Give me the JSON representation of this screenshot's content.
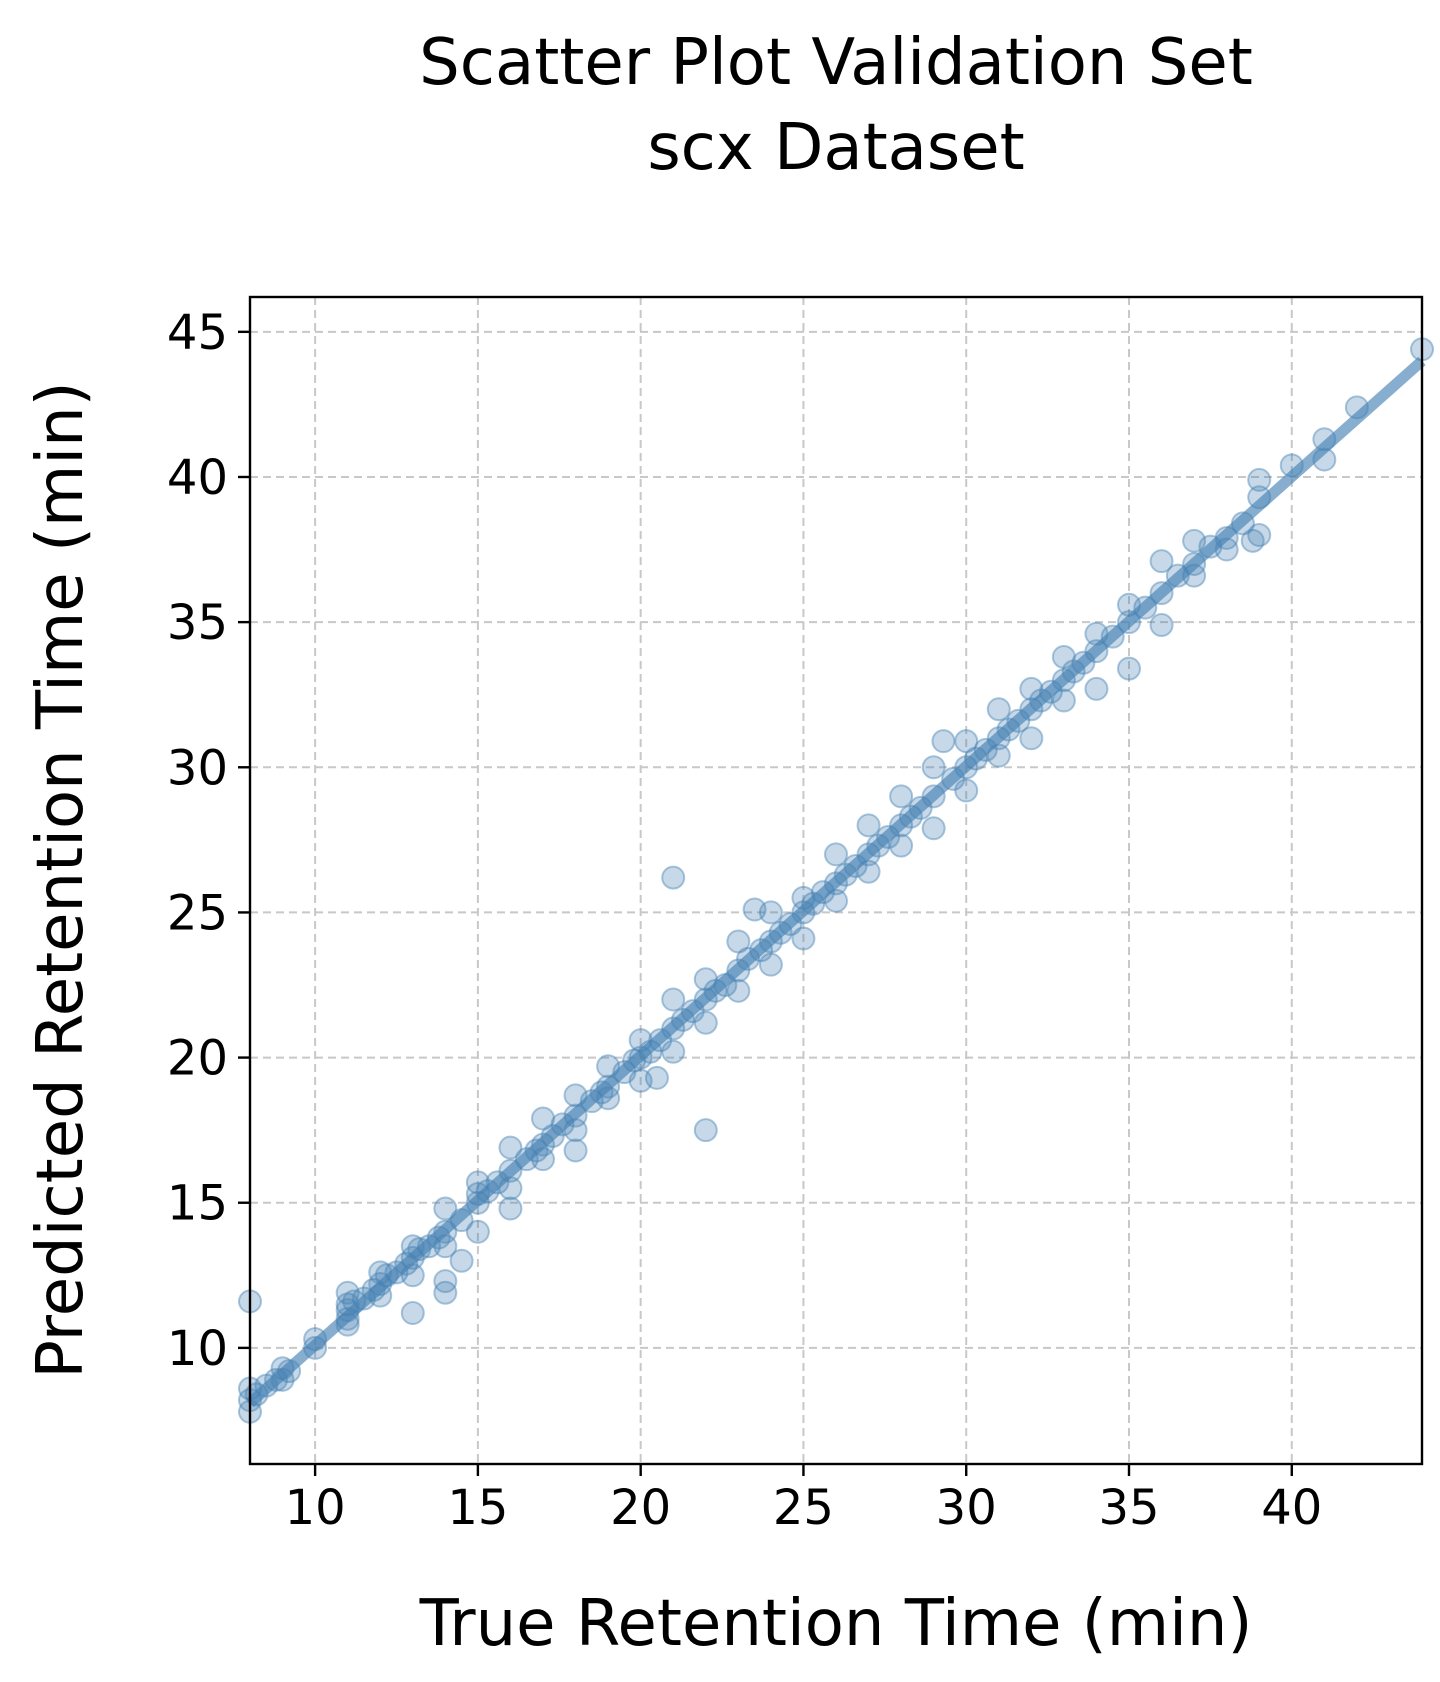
{
  "chart_data": {
    "type": "scatter",
    "title": "Scatter Plot Validation Set",
    "subtitle": "scx Dataset",
    "xlabel": "True Retention Time (min)",
    "ylabel": "Predicted Retention Time (min)",
    "xlim": [
      8,
      44
    ],
    "ylim": [
      6,
      46.2
    ],
    "x_ticks": [
      10,
      15,
      20,
      25,
      30,
      35,
      40
    ],
    "y_ticks": [
      10,
      15,
      20,
      25,
      30,
      35,
      40,
      45
    ],
    "grid": true,
    "legend": "none",
    "point_color": "#4682b4",
    "fit_line": {
      "x": [
        8,
        44
      ],
      "y": [
        8.1,
        44.0
      ]
    },
    "series": [
      {
        "points": [
          [
            8.0,
            11.6
          ],
          [
            8.0,
            7.8
          ],
          [
            8.0,
            8.2
          ],
          [
            8.0,
            8.6
          ],
          [
            8.2,
            8.4
          ],
          [
            8.5,
            8.7
          ],
          [
            8.8,
            8.9
          ],
          [
            9.0,
            9.3
          ],
          [
            9.0,
            8.9
          ],
          [
            9.2,
            9.2
          ],
          [
            10.0,
            10.3
          ],
          [
            10.0,
            10.0
          ],
          [
            11.0,
            11.0
          ],
          [
            11.0,
            11.5
          ],
          [
            11.0,
            11.9
          ],
          [
            11.0,
            10.8
          ],
          [
            11.0,
            11.3
          ],
          [
            11.2,
            11.6
          ],
          [
            11.5,
            11.7
          ],
          [
            11.8,
            12.0
          ],
          [
            12.0,
            12.6
          ],
          [
            12.0,
            11.8
          ],
          [
            12.0,
            12.2
          ],
          [
            12.2,
            12.5
          ],
          [
            12.5,
            12.6
          ],
          [
            12.8,
            12.9
          ],
          [
            13.0,
            13.5
          ],
          [
            13.0,
            13.1
          ],
          [
            13.0,
            11.2
          ],
          [
            13.0,
            12.5
          ],
          [
            13.2,
            13.4
          ],
          [
            13.5,
            13.5
          ],
          [
            13.8,
            13.8
          ],
          [
            14.0,
            14.0
          ],
          [
            14.0,
            14.8
          ],
          [
            14.0,
            11.9
          ],
          [
            14.0,
            12.3
          ],
          [
            14.0,
            13.5
          ],
          [
            14.5,
            13.0
          ],
          [
            14.5,
            14.4
          ],
          [
            15.0,
            15.3
          ],
          [
            15.0,
            15.0
          ],
          [
            15.0,
            14.0
          ],
          [
            15.0,
            15.7
          ],
          [
            15.3,
            15.4
          ],
          [
            15.6,
            15.7
          ],
          [
            16.0,
            16.1
          ],
          [
            16.0,
            16.9
          ],
          [
            16.0,
            14.8
          ],
          [
            16.0,
            15.5
          ],
          [
            16.5,
            16.5
          ],
          [
            16.8,
            16.8
          ],
          [
            17.0,
            17.0
          ],
          [
            17.0,
            17.9
          ],
          [
            17.0,
            16.5
          ],
          [
            17.3,
            17.3
          ],
          [
            17.6,
            17.7
          ],
          [
            18.0,
            18.0
          ],
          [
            18.0,
            18.7
          ],
          [
            18.0,
            16.8
          ],
          [
            18.0,
            17.5
          ],
          [
            18.5,
            18.5
          ],
          [
            18.8,
            18.8
          ],
          [
            19.0,
            19.0
          ],
          [
            19.0,
            19.7
          ],
          [
            19.0,
            18.6
          ],
          [
            19.5,
            19.5
          ],
          [
            19.8,
            19.9
          ],
          [
            20.0,
            20.0
          ],
          [
            20.0,
            20.6
          ],
          [
            20.0,
            19.2
          ],
          [
            20.3,
            20.2
          ],
          [
            20.5,
            19.3
          ],
          [
            20.6,
            20.6
          ],
          [
            21.0,
            21.0
          ],
          [
            21.0,
            22.0
          ],
          [
            21.0,
            20.2
          ],
          [
            21.0,
            26.2
          ],
          [
            21.3,
            21.3
          ],
          [
            21.6,
            21.6
          ],
          [
            22.0,
            22.0
          ],
          [
            22.0,
            22.7
          ],
          [
            22.0,
            21.2
          ],
          [
            22.0,
            17.5
          ],
          [
            22.3,
            22.3
          ],
          [
            22.6,
            22.5
          ],
          [
            23.0,
            23.0
          ],
          [
            23.0,
            24.0
          ],
          [
            23.0,
            22.3
          ],
          [
            23.3,
            23.4
          ],
          [
            23.5,
            25.1
          ],
          [
            23.7,
            23.7
          ],
          [
            24.0,
            24.0
          ],
          [
            24.0,
            25.0
          ],
          [
            24.0,
            23.2
          ],
          [
            24.3,
            24.3
          ],
          [
            24.6,
            24.6
          ],
          [
            25.0,
            25.0
          ],
          [
            25.0,
            25.5
          ],
          [
            25.0,
            24.1
          ],
          [
            25.3,
            25.3
          ],
          [
            25.6,
            25.7
          ],
          [
            26.0,
            26.0
          ],
          [
            26.0,
            27.0
          ],
          [
            26.0,
            25.4
          ],
          [
            26.3,
            26.3
          ],
          [
            26.6,
            26.6
          ],
          [
            27.0,
            27.0
          ],
          [
            27.0,
            28.0
          ],
          [
            27.0,
            26.4
          ],
          [
            27.3,
            27.3
          ],
          [
            27.6,
            27.6
          ],
          [
            28.0,
            28.0
          ],
          [
            28.0,
            29.0
          ],
          [
            28.0,
            27.3
          ],
          [
            28.3,
            28.3
          ],
          [
            28.6,
            28.6
          ],
          [
            29.0,
            29.0
          ],
          [
            29.0,
            30.0
          ],
          [
            29.0,
            27.9
          ],
          [
            29.3,
            30.9
          ],
          [
            29.6,
            29.6
          ],
          [
            30.0,
            30.0
          ],
          [
            30.0,
            30.9
          ],
          [
            30.0,
            29.2
          ],
          [
            30.3,
            30.3
          ],
          [
            30.6,
            30.6
          ],
          [
            31.0,
            31.0
          ],
          [
            31.0,
            32.0
          ],
          [
            31.0,
            30.4
          ],
          [
            31.3,
            31.3
          ],
          [
            31.6,
            31.6
          ],
          [
            32.0,
            32.0
          ],
          [
            32.0,
            32.7
          ],
          [
            32.0,
            31.0
          ],
          [
            32.3,
            32.3
          ],
          [
            32.6,
            32.6
          ],
          [
            33.0,
            33.0
          ],
          [
            33.0,
            33.8
          ],
          [
            33.0,
            32.3
          ],
          [
            33.3,
            33.3
          ],
          [
            33.6,
            33.6
          ],
          [
            34.0,
            34.0
          ],
          [
            34.0,
            34.6
          ],
          [
            34.0,
            32.7
          ],
          [
            34.5,
            34.5
          ],
          [
            35.0,
            35.0
          ],
          [
            35.0,
            35.6
          ],
          [
            35.0,
            33.4
          ],
          [
            35.5,
            35.5
          ],
          [
            36.0,
            36.0
          ],
          [
            36.0,
            37.1
          ],
          [
            36.0,
            34.9
          ],
          [
            36.5,
            36.6
          ],
          [
            37.0,
            37.0
          ],
          [
            37.0,
            37.8
          ],
          [
            37.0,
            36.6
          ],
          [
            37.5,
            37.6
          ],
          [
            38.0,
            37.9
          ],
          [
            38.0,
            37.5
          ],
          [
            38.5,
            38.4
          ],
          [
            38.8,
            37.8
          ],
          [
            39.0,
            39.9
          ],
          [
            39.0,
            38.0
          ],
          [
            39.0,
            39.3
          ],
          [
            40.0,
            40.4
          ],
          [
            41.0,
            41.3
          ],
          [
            41.0,
            40.6
          ],
          [
            42.0,
            42.4
          ],
          [
            44.0,
            44.4
          ]
        ]
      }
    ]
  }
}
